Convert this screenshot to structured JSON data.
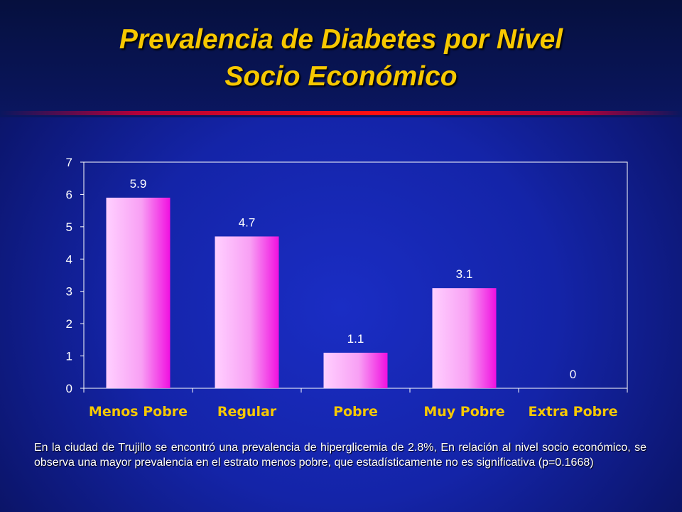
{
  "slide": {
    "title_line1": "Prevalencia de Diabetes por Nivel",
    "title_line2": "Socio Económico",
    "caption": "En la ciudad de Trujillo se encontró una prevalencia de hiperglicemia de 2.8%, En relación al nivel socio económico, se observa una mayor prevalencia en el estrato menos pobre, que estadísticamente no es significativa (p=0.1668)"
  },
  "colors": {
    "title": "#f7c800",
    "category_label": "#f7c800",
    "bar_light": "#ffd0ff",
    "bar_dark": "#f010e0",
    "plot_border": "#ffffff",
    "axis_text": "#ffffff"
  },
  "chart_data": {
    "type": "bar",
    "categories": [
      "Menos Pobre",
      "Regular",
      "Pobre",
      "Muy Pobre",
      "Extra Pobre"
    ],
    "values": [
      5.9,
      4.7,
      1.1,
      3.1,
      0
    ],
    "value_labels": [
      "5.9",
      "4.7",
      "1.1",
      "3.1",
      "0"
    ],
    "y_ticks": [
      "0",
      "1",
      "2",
      "3",
      "4",
      "5",
      "6",
      "7"
    ],
    "ylim": [
      0,
      7
    ],
    "grid": false,
    "legend": "none"
  }
}
